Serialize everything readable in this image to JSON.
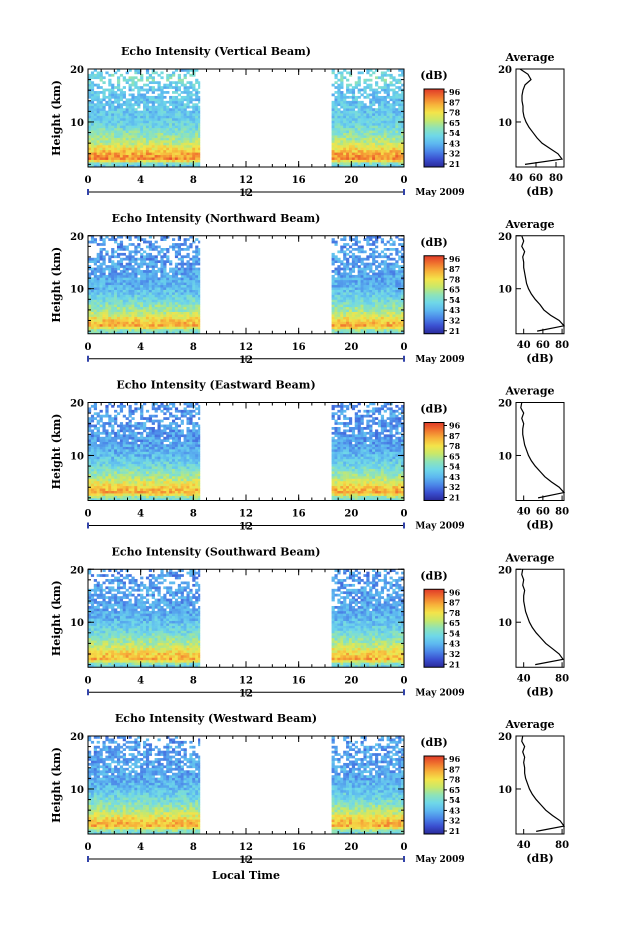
{
  "figure": {
    "date_label": "May 2009",
    "xlabel": "Local Time",
    "colorbar_unit": "(dB)",
    "colorbar_ticks": [
      "96",
      "87",
      "78",
      "65",
      "54",
      "43",
      "32",
      "21"
    ],
    "colorscale": [
      "#2a2a9a",
      "#3a4fd0",
      "#4b86e8",
      "#5db8f0",
      "#6fd8e8",
      "#8ee3b8",
      "#c8e86a",
      "#f4e44a",
      "#f7b23a",
      "#f0742e",
      "#e03a28"
    ]
  },
  "chart_data": [
    {
      "type": "heatmap",
      "title": "Echo Intensity (Vertical Beam)",
      "xlabel": "Local Time",
      "ylabel": "Height (km)",
      "x_ticks": [
        "0",
        "4",
        "8",
        "12",
        "16",
        "20",
        "0"
      ],
      "y_ticks": [
        "20",
        "10"
      ],
      "xlim": [
        0,
        24
      ],
      "ylim": [
        1.5,
        20
      ],
      "data_segments": [
        [
          0,
          8.5
        ],
        [
          18.5,
          24
        ]
      ],
      "color_range_db": [
        21,
        96
      ],
      "profile": {
        "title": "Average",
        "xlabel": "(dB)",
        "x_ticks": [
          "40",
          "60",
          "80"
        ],
        "y_ticks": [
          "20",
          "10"
        ],
        "xlim": [
          40,
          88
        ],
        "ylim": [
          1.5,
          20
        ],
        "height_km": [
          2,
          3,
          4,
          5,
          6,
          7,
          8,
          9,
          10,
          11,
          12,
          13,
          14,
          15,
          16,
          17,
          18,
          19,
          20
        ],
        "avg_db": [
          49,
          86,
          82,
          74,
          66,
          61,
          57,
          53,
          50,
          48,
          47,
          47,
          46,
          46,
          47,
          49,
          55,
          52,
          44
        ]
      }
    },
    {
      "type": "heatmap",
      "title": "Echo Intensity (Northward Beam)",
      "xlabel": "Local Time",
      "ylabel": "Height (km)",
      "x_ticks": [
        "0",
        "4",
        "8",
        "12",
        "16",
        "20",
        "0"
      ],
      "y_ticks": [
        "20",
        "10"
      ],
      "xlim": [
        0,
        24
      ],
      "ylim": [
        1.5,
        20
      ],
      "data_segments": [
        [
          0,
          8.5
        ],
        [
          18.5,
          24
        ]
      ],
      "color_range_db": [
        21,
        96
      ],
      "profile": {
        "title": "Average",
        "xlabel": "(dB)",
        "x_ticks": [
          "40",
          "60",
          "80"
        ],
        "y_ticks": [
          "20",
          "10"
        ],
        "xlim": [
          32,
          82
        ],
        "ylim": [
          1.5,
          20
        ],
        "height_km": [
          2,
          3,
          4,
          5,
          6,
          7,
          8,
          9,
          10,
          11,
          12,
          13,
          14,
          15,
          16,
          17,
          18,
          19,
          20
        ],
        "avg_db": [
          54,
          82,
          77,
          68,
          61,
          57,
          52,
          48,
          45,
          43,
          42,
          41,
          40,
          40,
          39,
          41,
          38,
          40,
          38
        ]
      }
    },
    {
      "type": "heatmap",
      "title": "Echo Intensity (Eastward Beam)",
      "xlabel": "Local Time",
      "ylabel": "Height (km)",
      "x_ticks": [
        "0",
        "4",
        "8",
        "12",
        "16",
        "20",
        "0"
      ],
      "y_ticks": [
        "20",
        "10"
      ],
      "xlim": [
        0,
        24
      ],
      "ylim": [
        1.5,
        20
      ],
      "data_segments": [
        [
          0,
          8.5
        ],
        [
          18.5,
          24
        ]
      ],
      "color_range_db": [
        21,
        96
      ],
      "profile": {
        "title": "Average",
        "xlabel": "(dB)",
        "x_ticks": [
          "40",
          "60",
          "80"
        ],
        "y_ticks": [
          "20",
          "10"
        ],
        "xlim": [
          32,
          82
        ],
        "ylim": [
          1.5,
          20
        ],
        "height_km": [
          2,
          3,
          4,
          5,
          6,
          7,
          8,
          9,
          10,
          11,
          12,
          13,
          14,
          15,
          16,
          17,
          18,
          19,
          20
        ],
        "avg_db": [
          55,
          82,
          77,
          69,
          62,
          57,
          52,
          48,
          45,
          43,
          41,
          40,
          39,
          39,
          40,
          38,
          40,
          37,
          38
        ]
      }
    },
    {
      "type": "heatmap",
      "title": "Echo Intensity (Southward Beam)",
      "xlabel": "Local Time",
      "ylabel": "Height (km)",
      "x_ticks": [
        "0",
        "4",
        "8",
        "12",
        "16",
        "20",
        "0"
      ],
      "y_ticks": [
        "20",
        "10"
      ],
      "xlim": [
        0,
        24
      ],
      "ylim": [
        1.5,
        20
      ],
      "data_segments": [
        [
          0,
          8.5
        ],
        [
          18.5,
          24
        ]
      ],
      "color_range_db": [
        21,
        96
      ],
      "profile": {
        "title": "Average",
        "xlabel": "(dB)",
        "x_ticks": [
          "40",
          "80"
        ],
        "y_ticks": [
          "20",
          "10"
        ],
        "xlim": [
          32,
          82
        ],
        "ylim": [
          1.5,
          20
        ],
        "height_km": [
          2,
          3,
          4,
          5,
          6,
          7,
          8,
          9,
          10,
          11,
          12,
          13,
          14,
          15,
          16,
          17,
          18,
          19,
          20
        ],
        "avg_db": [
          52,
          81,
          77,
          70,
          63,
          58,
          53,
          49,
          46,
          44,
          42,
          41,
          40,
          40,
          41,
          39,
          40,
          38,
          39
        ]
      }
    },
    {
      "type": "heatmap",
      "title": "Echo Intensity (Westward Beam)",
      "xlabel": "Local Time",
      "ylabel": "Height (km)",
      "x_ticks": [
        "0",
        "4",
        "8",
        "12",
        "16",
        "20",
        "0"
      ],
      "y_ticks": [
        "20",
        "10"
      ],
      "xlim": [
        0,
        24
      ],
      "ylim": [
        1.5,
        20
      ],
      "data_segments": [
        [
          0,
          8.5
        ],
        [
          18.5,
          24
        ]
      ],
      "color_range_db": [
        21,
        96
      ],
      "profile": {
        "title": "Average",
        "xlabel": "(dB)",
        "x_ticks": [
          "40",
          "80"
        ],
        "y_ticks": [
          "20",
          "10"
        ],
        "xlim": [
          32,
          82
        ],
        "ylim": [
          1.5,
          20
        ],
        "height_km": [
          2,
          3,
          4,
          5,
          6,
          7,
          8,
          9,
          10,
          11,
          12,
          13,
          14,
          15,
          16,
          17,
          18,
          19,
          20
        ],
        "avg_db": [
          53,
          82,
          78,
          70,
          63,
          58,
          53,
          49,
          46,
          44,
          42,
          41,
          41,
          40,
          41,
          39,
          41,
          38,
          39
        ]
      }
    }
  ]
}
